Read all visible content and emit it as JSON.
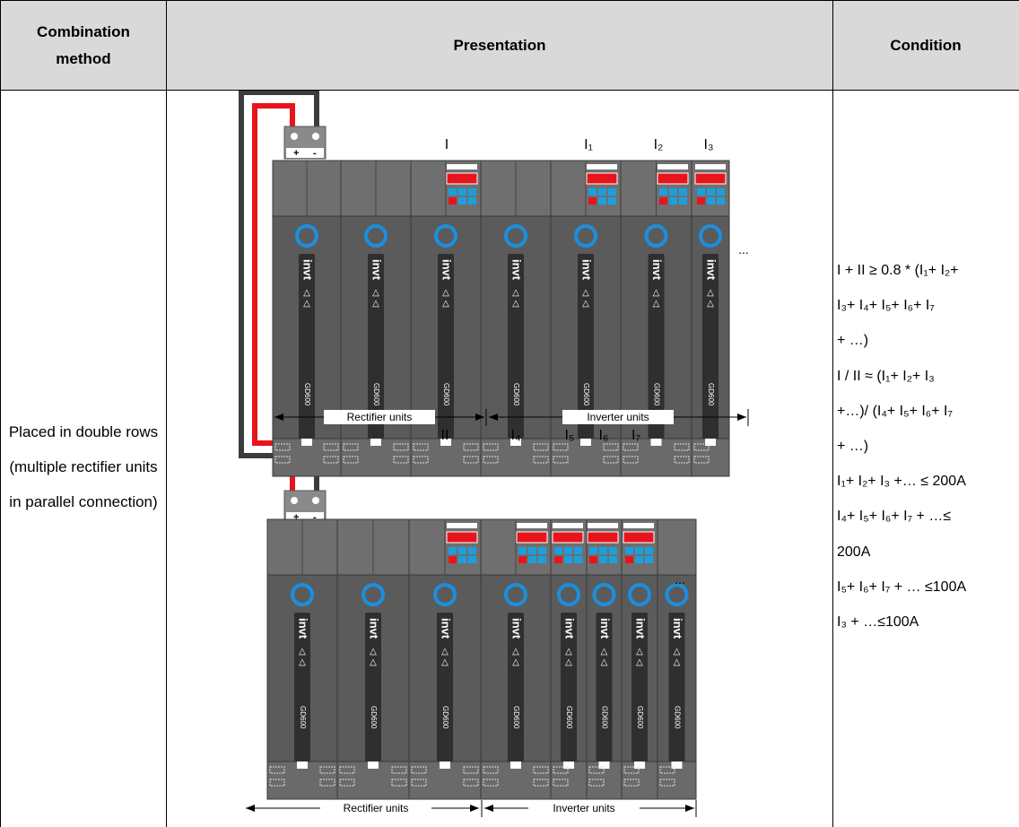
{
  "header": {
    "method": "Combination method",
    "presentation": "Presentation",
    "condition": "Condition"
  },
  "row": {
    "method": "Placed in double rows (multiple rectifier units in parallel connection)",
    "diagram": {
      "top_labels": [
        "I",
        "I₁",
        "I₂",
        "I₃"
      ],
      "bottom_labels": [
        "II",
        "I₄",
        "I₅",
        "I₆",
        "I₇"
      ],
      "ellipsis": "...",
      "rectifier_units": "Rectifier units",
      "inverter_units": "Inverter units",
      "brand": "invt",
      "model": "GD600",
      "plus": "+",
      "minus": "-"
    },
    "condition": [
      "I + II ≥ 0.8 * (I₁+ I₂+",
      "I₃+ I₄+ I₅+ I₆+ I₇",
      "+ …)",
      "I / II ≈ (I₁+ I₂+ I₃",
      "+…)/ (I₄+ I₅+ I₆+ I₇",
      "+ …)",
      "I₁+ I₂+ I₃ +… ≤ 200A",
      "I₄+ I₅+ I₆+ I₇ + …≤",
      "200A",
      "I₅+ I₆+ I₇ + … ≤100A",
      "I₃ + …≤100A"
    ]
  }
}
